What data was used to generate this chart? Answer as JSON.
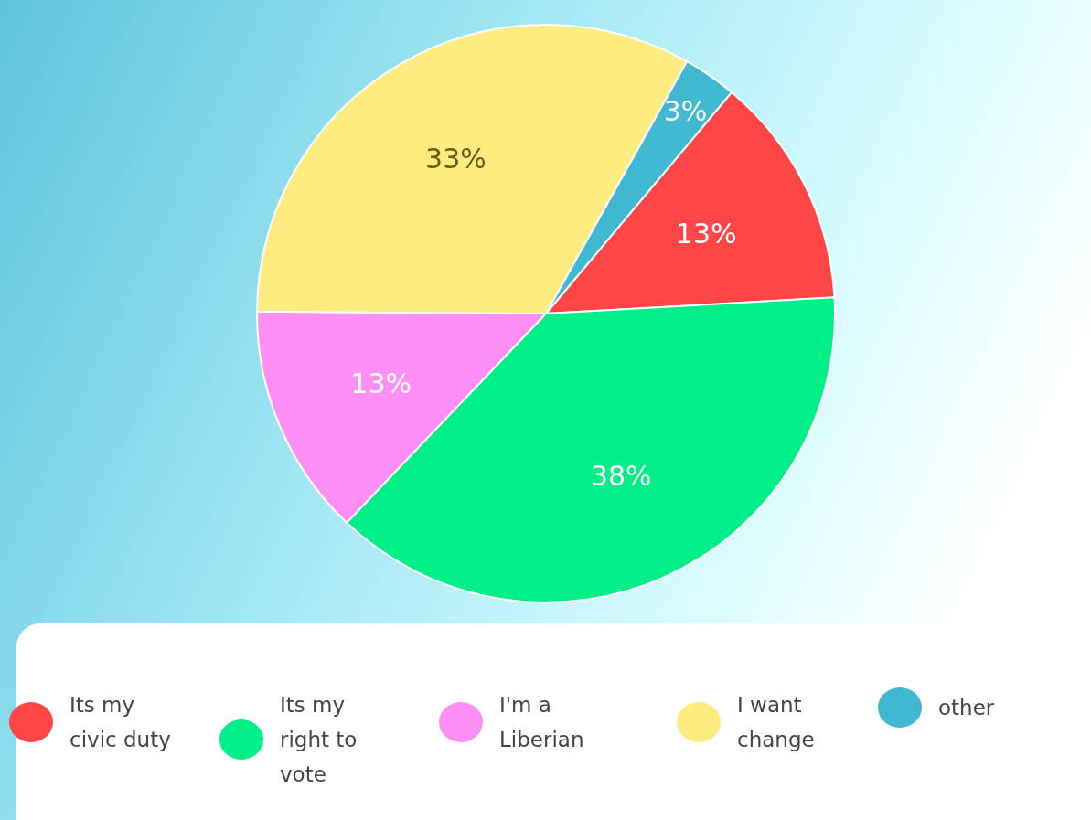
{
  "chart_data": {
    "type": "pie",
    "categories": [
      "Its my civic duty",
      "Its my right to vote",
      "I'm a Liberian",
      "I want change",
      "other"
    ],
    "values": [
      13,
      38,
      13,
      33,
      3
    ],
    "colors": [
      "#ff4545",
      "#00ee88",
      "#ff8ef5",
      "#ffec80",
      "#40b8d0"
    ],
    "value_labels": [
      "13%",
      "38%",
      "13%",
      "33%",
      "3%"
    ],
    "legend": "bottom"
  }
}
